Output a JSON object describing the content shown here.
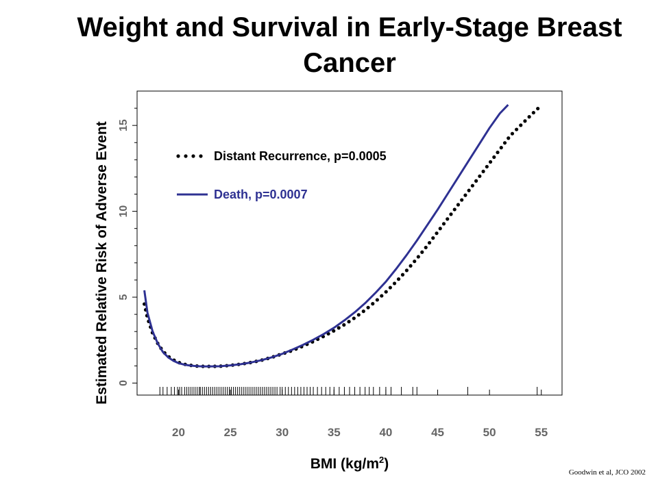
{
  "chart_data": {
    "type": "line",
    "title": "Weight and Survival in Early-Stage Breast Cancer",
    "xlabel": "BMI (kg/m",
    "xlabel_sup": "2",
    "xlabel_suffix": ")",
    "ylabel": "Estimated Relative Risk of Adverse Event",
    "xlim": [
      16,
      57
    ],
    "ylim": [
      -0.7,
      17
    ],
    "x_ticks": [
      20,
      25,
      30,
      35,
      40,
      45,
      50,
      55
    ],
    "y_ticks": [
      0,
      5,
      10,
      15
    ],
    "grid": false,
    "legend_position": "top-left",
    "series": [
      {
        "name": "Distant Recurrence, p=0.0005",
        "style": "dotted",
        "color": "#000000",
        "x": [
          16.7,
          17,
          17.5,
          18,
          18.5,
          19,
          19.5,
          20,
          20.5,
          21,
          21.5,
          22,
          22.5,
          23,
          24,
          25,
          26,
          27,
          28,
          29,
          30,
          31,
          32,
          33,
          34,
          35,
          36,
          37,
          38,
          39,
          40,
          41,
          42,
          43,
          44,
          45,
          46,
          47,
          48,
          49,
          50,
          51,
          52,
          53,
          54,
          54.7
        ],
        "y": [
          4.6,
          3.8,
          2.9,
          2.3,
          1.85,
          1.55,
          1.35,
          1.2,
          1.1,
          1.05,
          1.0,
          0.98,
          0.97,
          0.97,
          0.98,
          1.03,
          1.1,
          1.2,
          1.33,
          1.5,
          1.7,
          1.9,
          2.15,
          2.42,
          2.72,
          3.05,
          3.4,
          3.8,
          4.25,
          4.75,
          5.3,
          5.9,
          6.55,
          7.25,
          8.0,
          8.8,
          9.6,
          10.4,
          11.2,
          12.0,
          12.8,
          13.6,
          14.4,
          15.0,
          15.6,
          16.0
        ]
      },
      {
        "name": "Death, p=0.0007",
        "style": "solid",
        "color": "#2e3192",
        "x": [
          16.7,
          17,
          17.5,
          18,
          18.5,
          19,
          19.5,
          20,
          20.5,
          21,
          21.5,
          22,
          22.5,
          23,
          24,
          25,
          26,
          27,
          28,
          29,
          30,
          31,
          32,
          33,
          34,
          35,
          36,
          37,
          38,
          39,
          40,
          41,
          42,
          43,
          44,
          45,
          46,
          47,
          48,
          49,
          50,
          51,
          51.8
        ],
        "y": [
          5.4,
          4.1,
          3.0,
          2.3,
          1.8,
          1.5,
          1.3,
          1.16,
          1.08,
          1.03,
          1.0,
          0.98,
          0.97,
          0.97,
          0.98,
          1.03,
          1.1,
          1.2,
          1.33,
          1.5,
          1.7,
          1.95,
          2.22,
          2.52,
          2.85,
          3.22,
          3.65,
          4.12,
          4.65,
          5.25,
          5.9,
          6.65,
          7.45,
          8.3,
          9.2,
          10.1,
          11.05,
          12.0,
          12.95,
          13.9,
          14.85,
          15.7,
          16.2
        ]
      }
    ],
    "rug_x": [
      18.2,
      18.5,
      18.9,
      19.3,
      19.6,
      19.9,
      20.1,
      20.3,
      20.6,
      20.8,
      21.0,
      21.2,
      21.4,
      21.6,
      21.8,
      22.0,
      22.1,
      22.3,
      22.5,
      22.7,
      22.9,
      23.1,
      23.3,
      23.5,
      23.7,
      23.9,
      24.1,
      24.3,
      24.5,
      24.7,
      24.9,
      25.1,
      25.3,
      25.5,
      25.7,
      25.9,
      26.1,
      26.3,
      26.5,
      26.7,
      26.9,
      27.1,
      27.3,
      27.5,
      27.7,
      27.9,
      28.1,
      28.3,
      28.5,
      28.7,
      28.9,
      29.1,
      29.3,
      29.5,
      29.8,
      30.0,
      30.3,
      30.6,
      30.9,
      31.2,
      31.5,
      31.8,
      32.1,
      32.4,
      32.7,
      33.0,
      33.4,
      33.8,
      34.2,
      34.6,
      35.0,
      35.5,
      36.0,
      36.5,
      37.0,
      37.5,
      38.0,
      38.4,
      38.8,
      39.4,
      40.0,
      40.5,
      41.5,
      42.6,
      43.0,
      47.9,
      54.6
    ],
    "source": "Goodwin et al, JCO 2002"
  }
}
